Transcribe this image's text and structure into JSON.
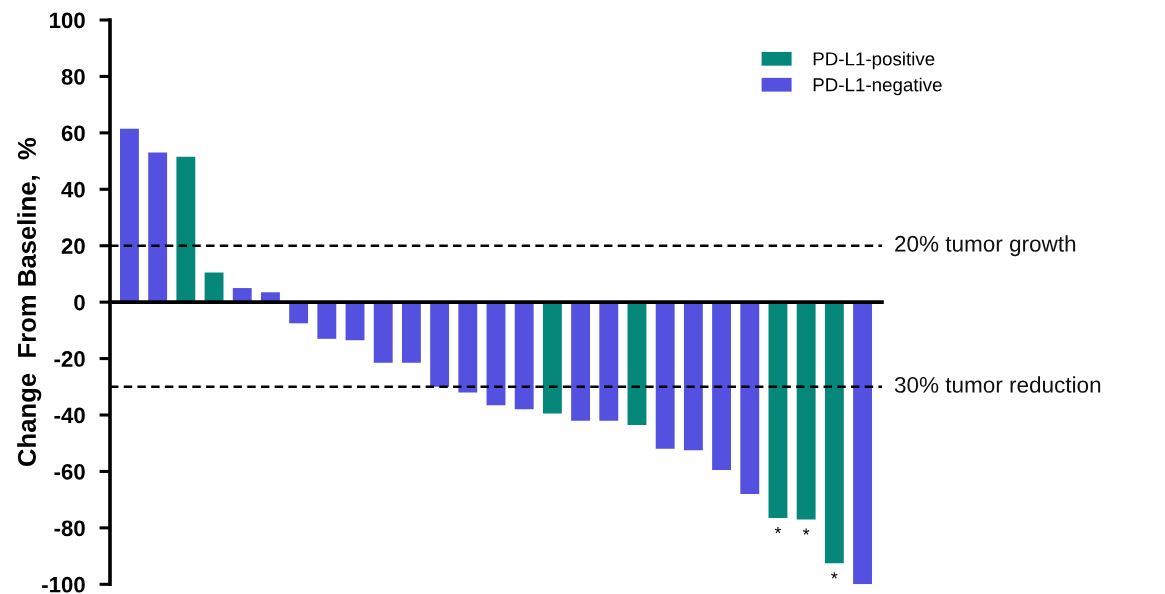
{
  "chart_data": {
    "type": "bar",
    "ylabel": "Change  From Baseline,  %",
    "categories": [
      null,
      null,
      null,
      null,
      null,
      null,
      null,
      null,
      null,
      null,
      null,
      null,
      null,
      null,
      null,
      null,
      null,
      null,
      null,
      null,
      null,
      null,
      null,
      null,
      null,
      null,
      null
    ],
    "series": [
      {
        "name": "PD-L1-positive",
        "color": "#05877a",
        "values": [
          null,
          null,
          51.5,
          10.5,
          null,
          null,
          null,
          null,
          null,
          null,
          null,
          null,
          null,
          null,
          null,
          -39.5,
          null,
          null,
          -43.5,
          null,
          null,
          null,
          null,
          -76.5,
          -77,
          -92.5,
          null
        ],
        "value_labels": [
          null,
          null,
          null,
          null,
          null,
          null,
          null,
          null,
          null,
          null,
          null,
          null,
          null,
          null,
          null,
          null,
          null,
          null,
          null,
          null,
          null,
          null,
          null,
          "*",
          "*",
          "*",
          null
        ]
      },
      {
        "name": "PD-L1-negative",
        "color": "#5551e0",
        "values": [
          61.5,
          53,
          null,
          null,
          5,
          3.5,
          -7.5,
          -13,
          -13.5,
          -21.5,
          -21.5,
          -30,
          -32,
          -36.5,
          -38,
          null,
          -42,
          -42,
          null,
          -52,
          -52.5,
          -59.5,
          -68,
          null,
          null,
          null,
          -100
        ]
      }
    ],
    "stacked": true,
    "ylim": [
      -100,
      100
    ],
    "yticks": [
      -100,
      -80,
      -60,
      -40,
      -20,
      0,
      20,
      40,
      60,
      80,
      100
    ],
    "tick_labels": "y",
    "legend": "top right",
    "ref_lines": [
      {
        "axis": "y",
        "value": 20,
        "label": "20% tumor growth",
        "color": "#000000",
        "line_style": "dashed"
      },
      {
        "axis": "y",
        "value": -30,
        "label": "30% tumor reduction",
        "color": "#000000",
        "line_style": "dashed"
      }
    ]
  }
}
